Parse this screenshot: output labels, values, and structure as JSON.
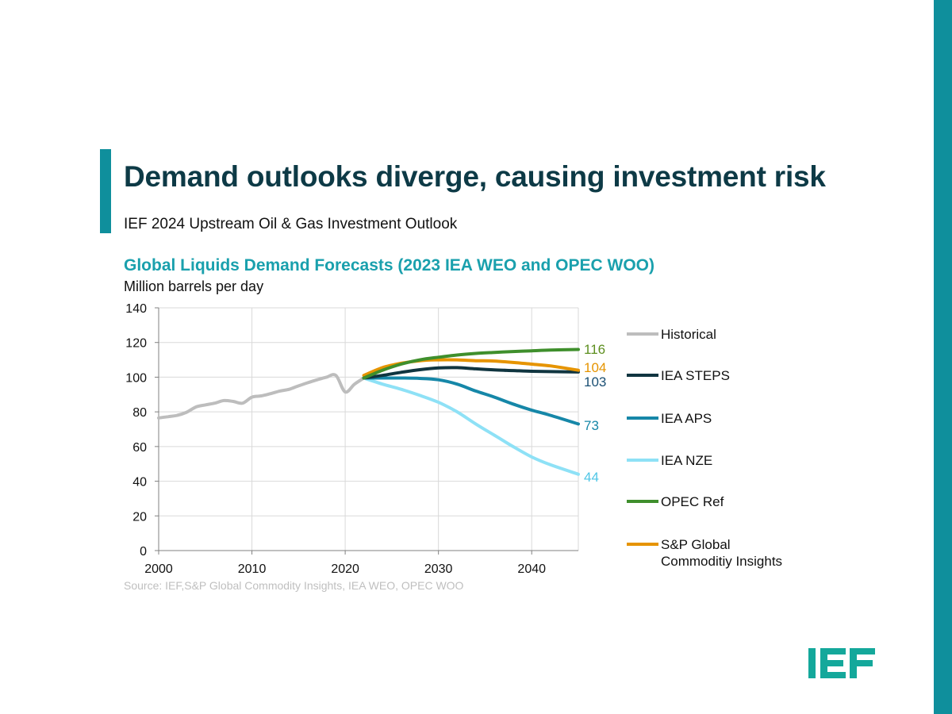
{
  "colors": {
    "accent": "#0f8f9c",
    "title": "#0d3a46",
    "chart_title": "#1aa0ad"
  },
  "slide": {
    "title": "Demand outlooks diverge, causing investment risk",
    "subtitle": "IEF 2024 Upstream Oil & Gas Investment Outlook",
    "source": "Source: IEF,S&P Global Commodity Insights,  IEA WEO, OPEC WOO",
    "logo_icon": "ief-logo-icon"
  },
  "chart_data": {
    "type": "line",
    "title": "Global Liquids Demand Forecasts (2023 IEA WEO and OPEC WOO)",
    "ylabel": "Million barrels per day",
    "xlabel": "",
    "xlim": [
      2000,
      2045
    ],
    "ylim": [
      0,
      140
    ],
    "xticks": [
      2000,
      2010,
      2020,
      2030,
      2040
    ],
    "yticks": [
      0,
      20,
      40,
      60,
      80,
      100,
      120,
      140
    ],
    "grid": true,
    "legend_position": "right",
    "series": [
      {
        "name": "Historical",
        "color": "#bdbdbd",
        "points": [
          [
            2000,
            76.5
          ],
          [
            2001,
            77.2
          ],
          [
            2002,
            78
          ],
          [
            2003,
            79.8
          ],
          [
            2004,
            82.8
          ],
          [
            2005,
            84
          ],
          [
            2006,
            85
          ],
          [
            2007,
            86.5
          ],
          [
            2008,
            86
          ],
          [
            2009,
            85
          ],
          [
            2010,
            88.5
          ],
          [
            2011,
            89.2
          ],
          [
            2012,
            90.5
          ],
          [
            2013,
            92
          ],
          [
            2014,
            93
          ],
          [
            2015,
            95
          ],
          [
            2016,
            96.8
          ],
          [
            2017,
            98.5
          ],
          [
            2018,
            100
          ],
          [
            2019,
            101
          ],
          [
            2020,
            91.5
          ],
          [
            2021,
            96
          ],
          [
            2022,
            99.5
          ]
        ]
      },
      {
        "name": "IEA STEPS",
        "color": "#103540",
        "end_label": "103",
        "points": [
          [
            2022,
            99.5
          ],
          [
            2024,
            101
          ],
          [
            2026,
            102.8
          ],
          [
            2028,
            104.3
          ],
          [
            2030,
            105.3
          ],
          [
            2032,
            105.5
          ],
          [
            2034,
            104.8
          ],
          [
            2036,
            104.2
          ],
          [
            2038,
            103.8
          ],
          [
            2040,
            103.4
          ],
          [
            2042,
            103.2
          ],
          [
            2045,
            103
          ]
        ]
      },
      {
        "name": "IEA APS",
        "color": "#1687a8",
        "end_label": "73",
        "points": [
          [
            2022,
            99.5
          ],
          [
            2024,
            99.5
          ],
          [
            2026,
            99.5
          ],
          [
            2028,
            99.3
          ],
          [
            2030,
            98.5
          ],
          [
            2032,
            96
          ],
          [
            2034,
            92
          ],
          [
            2036,
            88.5
          ],
          [
            2038,
            84.5
          ],
          [
            2040,
            81
          ],
          [
            2042,
            78
          ],
          [
            2045,
            73
          ]
        ]
      },
      {
        "name": "IEA NZE",
        "color": "#8ee1f6",
        "end_label": "44",
        "points": [
          [
            2022,
            99.5
          ],
          [
            2024,
            96
          ],
          [
            2026,
            93
          ],
          [
            2028,
            89.5
          ],
          [
            2030,
            85.5
          ],
          [
            2032,
            80
          ],
          [
            2034,
            73
          ],
          [
            2036,
            66.5
          ],
          [
            2038,
            60
          ],
          [
            2040,
            54
          ],
          [
            2042,
            49.5
          ],
          [
            2045,
            44
          ]
        ]
      },
      {
        "name": "OPEC Ref",
        "color": "#3f8f2c",
        "end_label": "116",
        "points": [
          [
            2022,
            99.5
          ],
          [
            2024,
            104
          ],
          [
            2026,
            107.5
          ],
          [
            2028,
            110
          ],
          [
            2030,
            111.5
          ],
          [
            2032,
            112.8
          ],
          [
            2034,
            113.7
          ],
          [
            2036,
            114.3
          ],
          [
            2038,
            114.8
          ],
          [
            2040,
            115.2
          ],
          [
            2042,
            115.6
          ],
          [
            2045,
            116
          ]
        ]
      },
      {
        "name": "S&P Global Commoditiy Insights",
        "legend_lines": [
          "S&P Global",
          "Commoditiy Insights"
        ],
        "color": "#e69400",
        "end_label": "104",
        "points": [
          [
            2022,
            101
          ],
          [
            2024,
            105.5
          ],
          [
            2026,
            108
          ],
          [
            2028,
            109.5
          ],
          [
            2030,
            110
          ],
          [
            2032,
            110
          ],
          [
            2034,
            109.5
          ],
          [
            2036,
            109.3
          ],
          [
            2038,
            108.5
          ],
          [
            2040,
            107.5
          ],
          [
            2042,
            106.5
          ],
          [
            2045,
            104
          ]
        ]
      }
    ]
  }
}
